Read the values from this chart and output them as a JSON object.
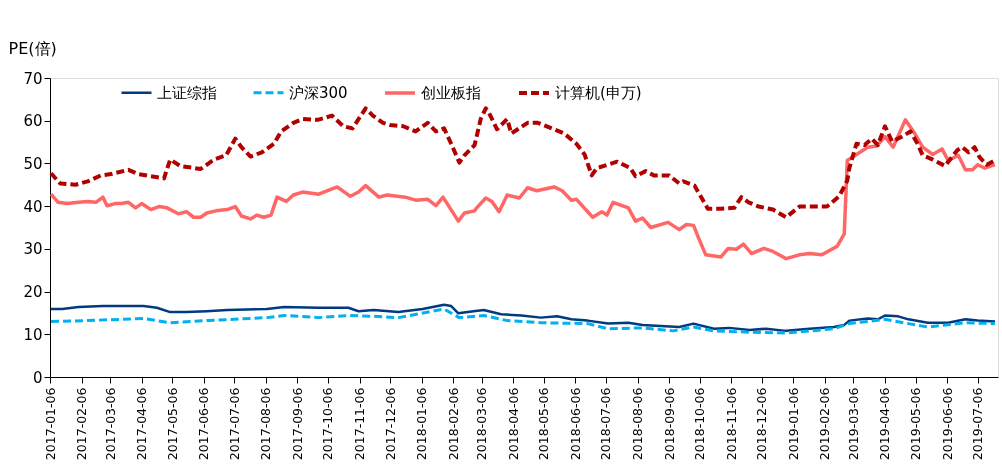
{
  "chart_data": {
    "type": "line",
    "ylabel": "PE(倍)",
    "xlim": [
      "2017-01-06",
      "2019-07-26"
    ],
    "ylim": [
      0,
      70
    ],
    "yticks": [
      0,
      10,
      20,
      30,
      40,
      50,
      60,
      70
    ],
    "xticks": [
      "2017-01-06",
      "2017-02-06",
      "2017-03-06",
      "2017-04-06",
      "2017-05-06",
      "2017-06-06",
      "2017-07-06",
      "2017-08-06",
      "2017-09-06",
      "2017-10-06",
      "2017-11-06",
      "2017-12-06",
      "2018-01-06",
      "2018-02-06",
      "2018-03-06",
      "2018-04-06",
      "2018-05-06",
      "2018-06-06",
      "2018-07-06",
      "2018-08-06",
      "2018-09-06",
      "2018-10-06",
      "2018-11-06",
      "2018-12-06",
      "2019-01-06",
      "2019-02-06",
      "2019-03-06",
      "2019-04-06",
      "2019-05-06",
      "2019-06-06",
      "2019-07-06"
    ],
    "grid": false,
    "legend": "top",
    "marker": "none",
    "series": [
      {
        "name": "上证综指",
        "color": "#003a80",
        "line_style": "solid",
        "x": [
          "2017-01-07",
          "2017-01-18",
          "2017-02-03",
          "2017-02-27",
          "2017-03-22",
          "2017-04-08",
          "2017-04-21",
          "2017-05-04",
          "2017-05-20",
          "2017-06-09",
          "2017-06-29",
          "2017-08-07",
          "2017-08-24",
          "2017-09-27",
          "2017-10-26",
          "2017-11-05",
          "2017-11-20",
          "2017-12-14",
          "2018-01-07",
          "2018-01-28",
          "2018-02-04",
          "2018-02-11",
          "2018-02-26",
          "2018-03-08",
          "2018-03-25",
          "2018-04-14",
          "2018-05-03",
          "2018-05-19",
          "2018-06-02",
          "2018-06-18",
          "2018-07-08",
          "2018-07-28",
          "2018-08-11",
          "2018-08-24",
          "2018-09-16",
          "2018-09-30",
          "2018-10-20",
          "2018-11-04",
          "2018-11-24",
          "2018-12-10",
          "2018-12-30",
          "2019-01-22",
          "2019-02-15",
          "2019-02-25",
          "2019-03-02",
          "2019-03-20",
          "2019-03-30",
          "2019-04-06",
          "2019-04-19",
          "2019-04-29",
          "2019-05-18",
          "2019-06-07",
          "2019-06-24",
          "2019-07-06",
          "2019-07-23"
        ],
        "values": [
          15.9,
          15.9,
          16.4,
          16.6,
          16.6,
          16.6,
          16.2,
          15.2,
          15.2,
          15.4,
          15.7,
          15.9,
          16.4,
          16.2,
          16.2,
          15.4,
          15.7,
          15.2,
          15.9,
          16.9,
          16.6,
          14.9,
          15.4,
          15.7,
          14.7,
          14.4,
          13.9,
          14.2,
          13.5,
          13.2,
          12.5,
          12.7,
          12.2,
          12.0,
          11.7,
          12.5,
          11.3,
          11.5,
          11.0,
          11.3,
          10.8,
          11.3,
          11.7,
          12.2,
          13.2,
          13.7,
          13.5,
          14.4,
          14.2,
          13.5,
          12.7,
          12.7,
          13.5,
          13.2,
          13.0
        ]
      },
      {
        "name": "沪深300",
        "color": "#00b0f0",
        "line_style": "dashed",
        "x": [
          "2017-01-07",
          "2017-02-10",
          "2017-04-08",
          "2017-05-04",
          "2017-06-09",
          "2017-08-07",
          "2017-08-24",
          "2017-09-27",
          "2017-10-26",
          "2017-11-20",
          "2017-12-14",
          "2018-01-28",
          "2018-02-12",
          "2018-03-08",
          "2018-03-31",
          "2018-05-03",
          "2018-06-18",
          "2018-07-08",
          "2018-08-11",
          "2018-09-10",
          "2018-09-30",
          "2018-10-20",
          "2018-11-24",
          "2018-12-30",
          "2019-02-15",
          "2019-03-02",
          "2019-04-06",
          "2019-04-29",
          "2019-05-18",
          "2019-06-24",
          "2019-07-23"
        ],
        "values": [
          13.0,
          13.2,
          13.7,
          12.7,
          13.2,
          13.9,
          14.4,
          13.9,
          14.4,
          14.2,
          13.9,
          15.9,
          13.9,
          14.4,
          13.2,
          12.7,
          12.5,
          11.3,
          11.5,
          10.8,
          11.7,
          10.8,
          10.5,
          10.3,
          11.3,
          12.5,
          13.5,
          12.5,
          11.7,
          12.7,
          12.5
        ]
      },
      {
        "name": "创业板指",
        "color": "#ff6666",
        "line_style": "solid",
        "x": [
          "2017-01-07",
          "2017-01-14",
          "2017-01-23",
          "2017-02-03",
          "2017-02-12",
          "2017-02-20",
          "2017-02-27",
          "2017-03-03",
          "2017-03-11",
          "2017-03-17",
          "2017-03-24",
          "2017-03-31",
          "2017-04-06",
          "2017-04-15",
          "2017-04-23",
          "2017-05-01",
          "2017-05-12",
          "2017-05-20",
          "2017-05-27",
          "2017-06-03",
          "2017-06-09",
          "2017-06-18",
          "2017-06-29",
          "2017-07-07",
          "2017-07-13",
          "2017-07-22",
          "2017-07-28",
          "2017-08-04",
          "2017-08-11",
          "2017-08-17",
          "2017-08-26",
          "2017-09-02",
          "2017-09-11",
          "2017-09-27",
          "2017-10-05",
          "2017-10-15",
          "2017-10-28",
          "2017-11-05",
          "2017-11-12",
          "2017-11-25",
          "2017-12-03",
          "2017-12-21",
          "2017-12-31",
          "2018-01-12",
          "2018-01-20",
          "2018-01-27",
          "2018-02-11",
          "2018-02-17",
          "2018-02-27",
          "2018-03-01",
          "2018-03-10",
          "2018-03-16",
          "2018-03-23",
          "2018-03-31",
          "2018-04-12",
          "2018-04-20",
          "2018-04-29",
          "2018-05-16",
          "2018-05-24",
          "2018-06-02",
          "2018-06-07",
          "2018-06-23",
          "2018-07-02",
          "2018-07-07",
          "2018-07-13",
          "2018-07-28",
          "2018-08-04",
          "2018-08-11",
          "2018-08-19",
          "2018-09-05",
          "2018-09-16",
          "2018-09-23",
          "2018-09-30",
          "2018-10-05",
          "2018-10-12",
          "2018-10-27",
          "2018-11-03",
          "2018-11-11",
          "2018-11-18",
          "2018-11-26",
          "2018-12-08",
          "2018-12-17",
          "2018-12-30",
          "2019-01-12",
          "2019-01-22",
          "2019-02-03",
          "2019-02-18",
          "2019-02-25",
          "2019-02-28",
          "2019-03-09",
          "2019-03-20",
          "2019-03-29",
          "2019-04-06",
          "2019-04-14",
          "2019-04-26",
          "2019-05-04",
          "2019-05-13",
          "2019-05-23",
          "2019-06-01",
          "2019-06-07",
          "2019-06-17",
          "2019-06-24",
          "2019-07-01",
          "2019-07-06",
          "2019-07-13",
          "2019-07-23"
        ],
        "values": [
          42.8,
          40.9,
          40.6,
          40.9,
          41.1,
          40.9,
          42.1,
          40.1,
          40.6,
          40.6,
          40.9,
          39.6,
          40.6,
          39.2,
          39.9,
          39.6,
          38.2,
          38.7,
          37.4,
          37.4,
          38.4,
          38.9,
          39.2,
          39.9,
          37.7,
          37.0,
          37.9,
          37.4,
          37.9,
          42.1,
          41.1,
          42.6,
          43.3,
          42.8,
          43.6,
          44.5,
          42.3,
          43.3,
          44.8,
          42.1,
          42.6,
          42.1,
          41.4,
          41.6,
          40.1,
          42.1,
          36.5,
          38.4,
          38.9,
          39.6,
          41.9,
          41.1,
          38.7,
          42.6,
          41.9,
          44.3,
          43.6,
          44.5,
          43.6,
          41.4,
          41.6,
          37.4,
          38.7,
          37.9,
          40.9,
          39.6,
          36.5,
          37.2,
          35.0,
          36.2,
          34.5,
          35.7,
          35.5,
          32.5,
          28.6,
          28.1,
          30.1,
          29.9,
          31.1,
          28.9,
          30.1,
          29.4,
          27.7,
          28.6,
          28.9,
          28.6,
          30.6,
          33.5,
          50.7,
          52.1,
          53.8,
          54.1,
          56.3,
          53.8,
          60.2,
          57.5,
          53.8,
          52.1,
          53.4,
          50.7,
          51.9,
          48.5,
          48.5,
          49.7,
          48.9,
          49.7
        ]
      },
      {
        "name": "计算机(申万)",
        "color": "#b00000",
        "line_style": "dashed",
        "x": [
          "2017-01-07",
          "2017-01-16",
          "2017-01-31",
          "2017-02-12",
          "2017-02-25",
          "2017-03-07",
          "2017-03-24",
          "2017-04-03",
          "2017-04-15",
          "2017-04-28",
          "2017-05-04",
          "2017-05-14",
          "2017-06-03",
          "2017-06-16",
          "2017-06-28",
          "2017-07-07",
          "2017-07-13",
          "2017-07-22",
          "2017-08-02",
          "2017-08-14",
          "2017-08-21",
          "2017-09-02",
          "2017-09-11",
          "2017-09-26",
          "2017-10-10",
          "2017-10-21",
          "2017-10-30",
          "2017-11-12",
          "2017-11-19",
          "2017-11-29",
          "2017-12-06",
          "2017-12-19",
          "2017-12-31",
          "2018-01-12",
          "2018-01-20",
          "2018-01-28",
          "2018-02-04",
          "2018-02-12",
          "2018-02-17",
          "2018-02-27",
          "2018-03-05",
          "2018-03-10",
          "2018-03-13",
          "2018-03-21",
          "2018-03-31",
          "2018-04-04",
          "2018-04-20",
          "2018-04-30",
          "2018-05-16",
          "2018-05-26",
          "2018-06-07",
          "2018-06-15",
          "2018-06-22",
          "2018-06-27",
          "2018-07-08",
          "2018-07-17",
          "2018-07-30",
          "2018-08-04",
          "2018-08-14",
          "2018-08-22",
          "2018-09-06",
          "2018-09-16",
          "2018-09-20",
          "2018-10-01",
          "2018-10-07",
          "2018-10-14",
          "2018-10-27",
          "2018-11-09",
          "2018-11-16",
          "2018-11-23",
          "2018-12-03",
          "2018-12-17",
          "2018-12-30",
          "2019-01-12",
          "2019-01-26",
          "2019-02-08",
          "2019-02-20",
          "2019-02-28",
          "2019-03-02",
          "2019-03-09",
          "2019-03-17",
          "2019-03-24",
          "2019-03-30",
          "2019-04-06",
          "2019-04-13",
          "2019-04-23",
          "2019-05-01",
          "2019-05-08",
          "2019-05-13",
          "2019-05-23",
          "2019-06-04",
          "2019-06-16",
          "2019-06-21",
          "2019-06-27",
          "2019-07-03",
          "2019-07-08",
          "2019-07-15",
          "2019-07-23"
        ],
        "values": [
          47.7,
          45.3,
          45.0,
          45.8,
          47.2,
          47.5,
          48.5,
          47.5,
          47.0,
          46.5,
          50.9,
          49.4,
          48.7,
          50.9,
          51.9,
          55.8,
          53.8,
          51.6,
          52.6,
          54.6,
          57.5,
          59.5,
          60.4,
          60.2,
          61.2,
          58.7,
          58.2,
          62.9,
          61.2,
          59.5,
          59.0,
          58.7,
          57.5,
          59.5,
          57.5,
          58.2,
          54.6,
          50.2,
          51.9,
          54.3,
          60.4,
          62.9,
          61.9,
          58.0,
          60.4,
          57.0,
          59.5,
          59.5,
          58.0,
          57.0,
          54.6,
          52.1,
          47.2,
          48.9,
          49.7,
          50.4,
          48.9,
          47.0,
          48.2,
          47.2,
          47.2,
          45.3,
          45.8,
          44.8,
          42.3,
          39.4,
          39.4,
          39.6,
          42.1,
          40.9,
          39.9,
          39.2,
          37.4,
          39.9,
          39.9,
          39.9,
          42.3,
          46.0,
          48.9,
          54.6,
          54.3,
          55.8,
          54.3,
          58.7,
          55.1,
          56.3,
          57.5,
          54.6,
          51.9,
          50.9,
          49.4,
          53.1,
          53.8,
          52.6,
          53.8,
          51.4,
          49.7,
          50.7
        ]
      }
    ]
  }
}
